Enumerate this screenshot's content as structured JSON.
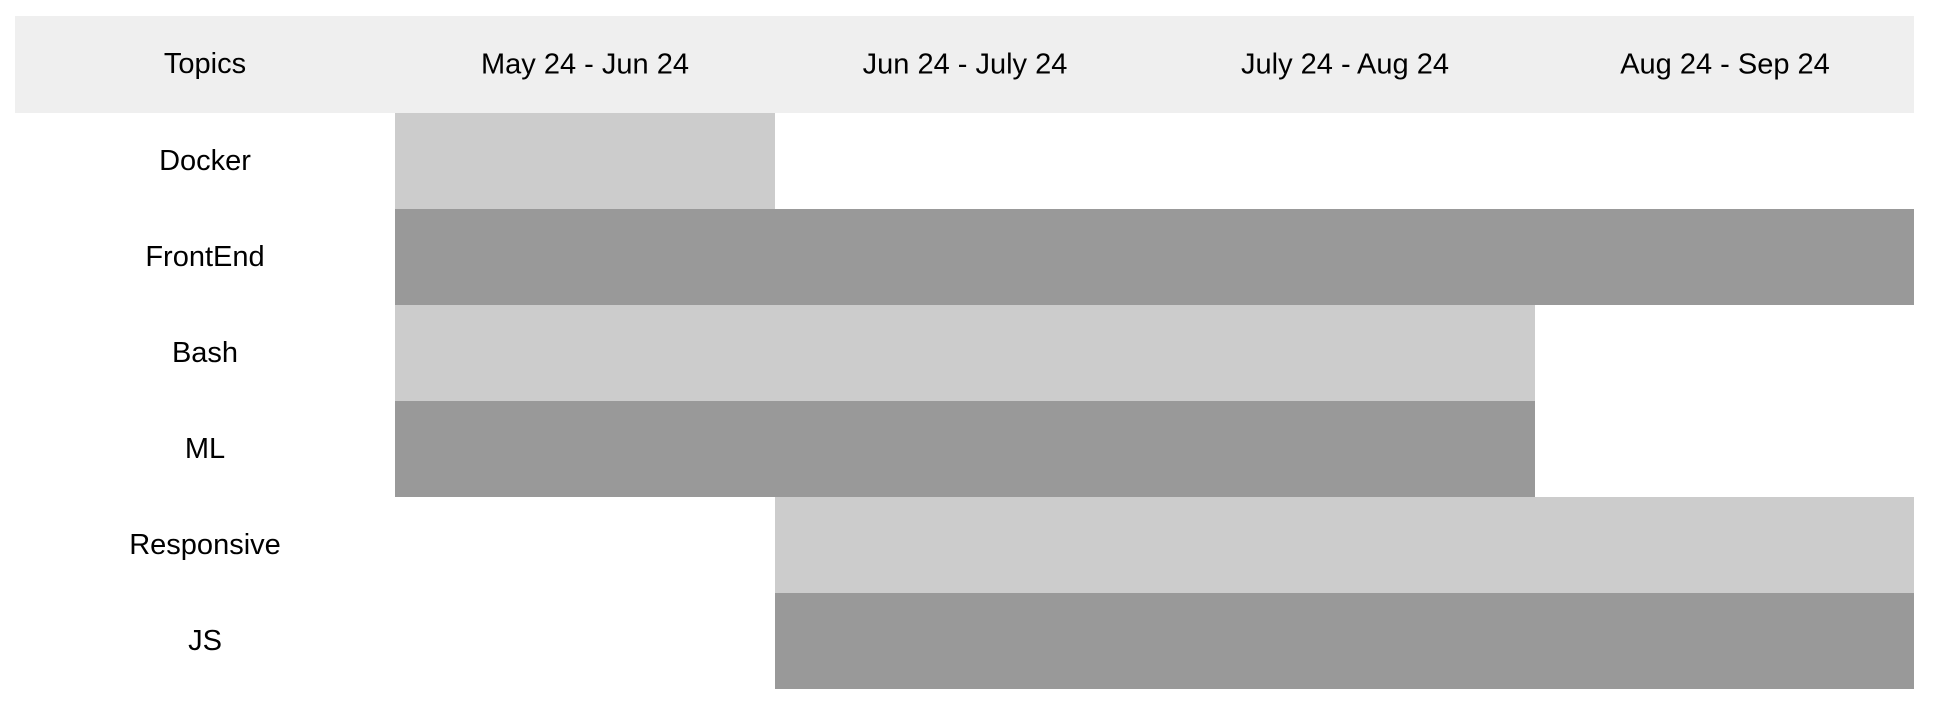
{
  "chart_data": {
    "type": "table",
    "corner_label": "Topics",
    "periods": [
      "May 24 - Jun 24",
      "Jun 24 - July 24",
      "July 24 - Aug 24",
      "Aug 24 - Sep 24"
    ],
    "rows": [
      {
        "topic": "Docker",
        "start_period": 0,
        "end_period": 1
      },
      {
        "topic": "FrontEnd",
        "start_period": 0,
        "end_period": 4
      },
      {
        "topic": "Bash",
        "start_period": 0,
        "end_period": 3
      },
      {
        "topic": "ML",
        "start_period": 0,
        "end_period": 3
      },
      {
        "topic": "Responsive",
        "start_period": 1,
        "end_period": 4
      },
      {
        "topic": "JS",
        "start_period": 1,
        "end_period": 4
      }
    ],
    "colors": {
      "header_background": "#efefef",
      "bar_light": "#cccccc",
      "bar_dark": "#999999",
      "background": "#ffffff"
    }
  }
}
